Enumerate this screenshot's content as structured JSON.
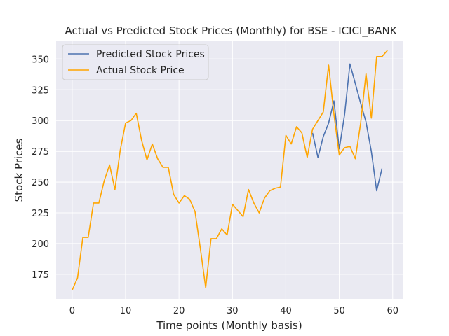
{
  "chart_data": {
    "type": "line",
    "title": "Actual vs Predicted Stock Prices (Monthly) for BSE - ICICI_BANK",
    "xlabel": "Time points (Monthly basis)",
    "ylabel": "Stock Prices",
    "xlim": [
      -3,
      62
    ],
    "ylim": [
      155,
      365
    ],
    "xticks": [
      0,
      10,
      20,
      30,
      40,
      50,
      60
    ],
    "yticks": [
      175,
      200,
      225,
      250,
      275,
      300,
      325,
      350
    ],
    "grid": true,
    "legend_position": "top-left",
    "series": [
      {
        "name": "Predicted Stock Prices",
        "color": "#4c72b0",
        "x": [
          45,
          46,
          47,
          48,
          49,
          50,
          51,
          52,
          53,
          54,
          55,
          56,
          57,
          58
        ],
        "y": [
          290,
          270,
          287,
          298,
          316,
          277,
          305,
          346,
          330,
          314,
          299,
          275,
          243,
          261
        ]
      },
      {
        "name": "Actual Stock Price",
        "color": "#ffa500",
        "x": [
          0,
          1,
          2,
          3,
          4,
          5,
          6,
          7,
          8,
          9,
          10,
          11,
          12,
          13,
          14,
          15,
          16,
          17,
          18,
          19,
          20,
          21,
          22,
          23,
          24,
          25,
          26,
          27,
          28,
          29,
          30,
          31,
          32,
          33,
          34,
          35,
          36,
          37,
          38,
          39,
          40,
          41,
          42,
          43,
          44,
          45,
          46,
          47,
          48,
          49,
          50,
          51,
          52,
          53,
          54,
          55,
          56,
          57,
          58,
          59
        ],
        "y": [
          162,
          172,
          205,
          205,
          233,
          233,
          251,
          264,
          244,
          276,
          298,
          300,
          306,
          284,
          268,
          281,
          269,
          262,
          262,
          240,
          233,
          239,
          236,
          226,
          196,
          164,
          204,
          204,
          212,
          207,
          232,
          227,
          222,
          244,
          233,
          225,
          237,
          243,
          245,
          246,
          288,
          281,
          295,
          290,
          270,
          293,
          300,
          307,
          345,
          305,
          272,
          278,
          279,
          269,
          298,
          338,
          302,
          352,
          352,
          357
        ]
      }
    ]
  }
}
